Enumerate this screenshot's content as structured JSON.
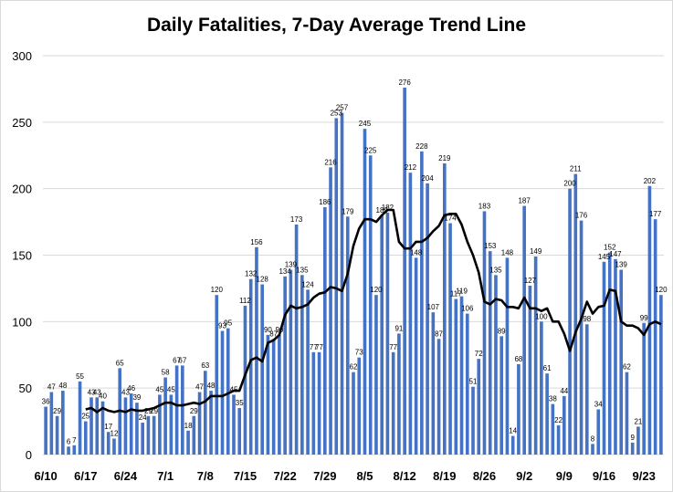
{
  "chart_data": {
    "type": "bar",
    "title": "Daily Fatalities, 7-Day Average Trend Line",
    "ylim": [
      0,
      300
    ],
    "yticks": [
      0,
      50,
      100,
      150,
      200,
      250,
      300
    ],
    "xtick_labels": [
      "6/10",
      "6/17",
      "6/24",
      "7/1",
      "7/8",
      "7/15",
      "7/22",
      "7/29",
      "8/5",
      "8/12",
      "8/19",
      "8/26",
      "9/2",
      "9/9",
      "9/16",
      "9/23"
    ],
    "grid": true,
    "series": [
      {
        "type": "bar",
        "color": "#4472c4",
        "values": [
          36,
          47,
          29,
          48,
          6,
          7,
          55,
          25,
          43,
          43,
          40,
          17,
          12,
          65,
          43,
          46,
          39,
          24,
          29,
          29,
          45,
          58,
          45,
          67,
          67,
          18,
          29,
          47,
          63,
          48,
          120,
          93,
          95,
          45,
          35,
          112,
          132,
          156,
          128,
          90,
          87,
          90,
          134,
          139,
          173,
          135,
          124,
          77,
          77,
          186,
          216,
          253,
          257,
          179,
          62,
          73,
          245,
          225,
          120,
          180,
          182,
          77,
          91,
          276,
          212,
          148,
          228,
          204,
          107,
          87,
          219,
          174,
          117,
          119,
          106,
          51,
          72,
          183,
          153,
          135,
          89,
          148,
          14,
          68,
          187,
          127,
          149,
          100,
          61,
          38,
          22,
          44,
          200,
          211,
          176,
          98,
          8,
          34,
          145,
          152,
          147,
          139,
          62,
          9,
          21,
          99,
          202,
          177,
          120
        ]
      },
      {
        "type": "line",
        "color": "#000000",
        "values": [
          34,
          35,
          32,
          35,
          33,
          32,
          33,
          32,
          34,
          33,
          33,
          34,
          35,
          37,
          39,
          39,
          37,
          37,
          38,
          39,
          38,
          40,
          44,
          44,
          44,
          46,
          48,
          48,
          60,
          71,
          73,
          70,
          84,
          86,
          90,
          105,
          112,
          110,
          111,
          113,
          118,
          121,
          122,
          126,
          125,
          123,
          136,
          157,
          170,
          177,
          177,
          175,
          180,
          184,
          184,
          160,
          155,
          155,
          160,
          160,
          163,
          168,
          172,
          180,
          181,
          181,
          173,
          160,
          150,
          137,
          115,
          113,
          117,
          116,
          111,
          111,
          110,
          118,
          110,
          110,
          108,
          110,
          100,
          100,
          91,
          78,
          92,
          102,
          115,
          106,
          111,
          112,
          124,
          123,
          100,
          97,
          97,
          95,
          90,
          98,
          100,
          98
        ]
      }
    ]
  }
}
